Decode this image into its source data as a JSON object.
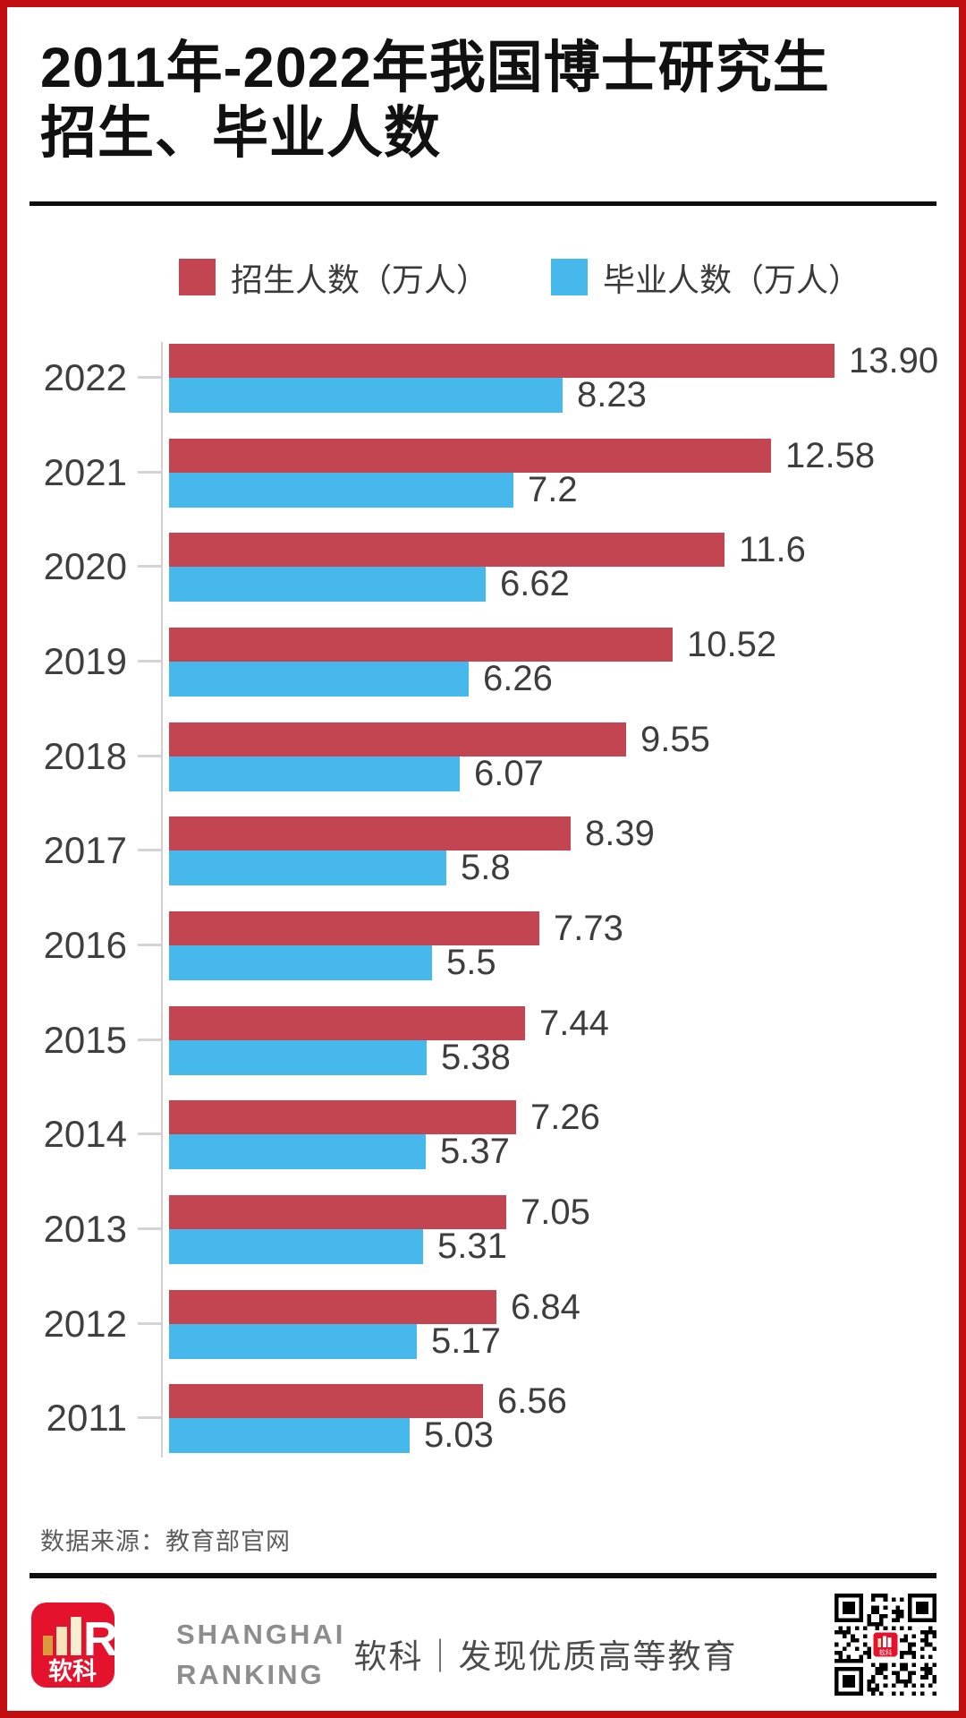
{
  "page": {
    "title": "2011年-2022年我国博士研究生招生、毕业人数",
    "source_note": "数据来源：教育部官网",
    "footer": {
      "logo_text": "软科",
      "brand_line1": "SHANGHAI",
      "brand_line2": "RANKING",
      "tagline": "软科｜发现优质高等教育"
    }
  },
  "colors": {
    "page_border": "#c20d11",
    "enrollment_red": "#c44552",
    "graduation_blue": "#47b8ec",
    "axis_gray": "#d0d0d0",
    "text_dark": "#3d3d3d",
    "logo_red": "#e5122d"
  },
  "chart_data": {
    "type": "bar",
    "orientation": "horizontal",
    "title": "2011年-2022年我国博士研究生招生、毕业人数",
    "categories": [
      "2022",
      "2021",
      "2020",
      "2019",
      "2018",
      "2017",
      "2016",
      "2015",
      "2014",
      "2013",
      "2012",
      "2011"
    ],
    "series": [
      {
        "name": "招生人数（万人）",
        "color": "#c44552",
        "values": [
          13.9,
          12.58,
          11.6,
          10.52,
          9.55,
          8.39,
          7.73,
          7.44,
          7.26,
          7.05,
          6.84,
          6.56
        ],
        "labels": [
          "13.90",
          "12.58",
          "11.6",
          "10.52",
          "9.55",
          "8.39",
          "7.73",
          "7.44",
          "7.26",
          "7.05",
          "6.84",
          "6.56"
        ]
      },
      {
        "name": "毕业人数（万人）",
        "color": "#47b8ec",
        "values": [
          8.23,
          7.2,
          6.62,
          6.26,
          6.07,
          5.8,
          5.5,
          5.38,
          5.37,
          5.31,
          5.17,
          5.03
        ],
        "labels": [
          "8.23",
          "7.2",
          "6.62",
          "6.26",
          "6.07",
          "5.8",
          "5.5",
          "5.38",
          "5.37",
          "5.31",
          "5.17",
          "5.03"
        ]
      }
    ],
    "xlim": [
      0,
      14.2
    ],
    "grid": false,
    "legend_position": "top",
    "value_labels": "outside-end"
  }
}
